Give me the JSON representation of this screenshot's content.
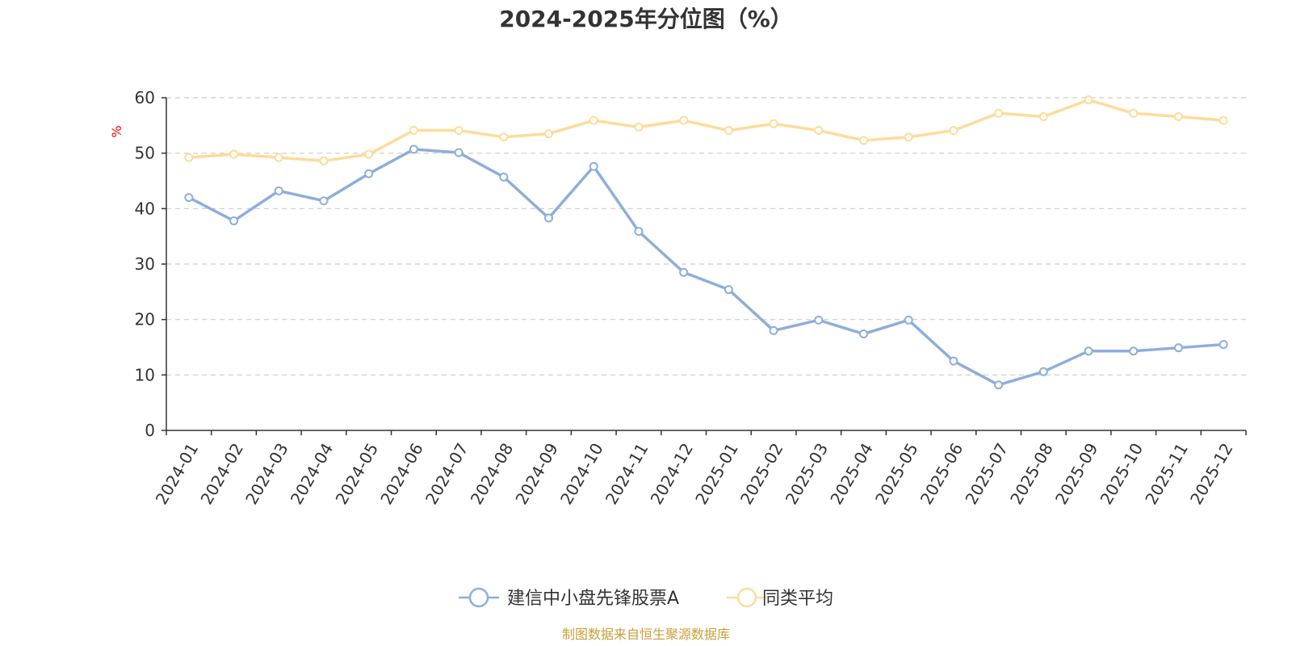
{
  "chart_data": {
    "type": "line",
    "title": "2024-2025年分位图（%）",
    "ylabel": "%",
    "ylabel_color": "#ff0000",
    "xlabel": "",
    "ylim": [
      0,
      60
    ],
    "yticks": [
      0,
      10,
      20,
      30,
      40,
      50,
      60
    ],
    "grid": true,
    "legend_position": "bottom-center",
    "categories": [
      "2024-01",
      "2024-02",
      "2024-03",
      "2024-04",
      "2024-05",
      "2024-06",
      "2024-07",
      "2024-08",
      "2024-09",
      "2024-10",
      "2024-11",
      "2024-12",
      "2025-01",
      "2025-02",
      "2025-03",
      "2025-04",
      "2025-05",
      "2025-06",
      "2025-07",
      "2025-08",
      "2025-09",
      "2025-10",
      "2025-11",
      "2025-12"
    ],
    "series": [
      {
        "name": "建信中小盘先锋股票A",
        "color": "#8eaedb",
        "values": [
          42.0,
          37.8,
          43.2,
          41.4,
          46.3,
          50.7,
          50.1,
          45.7,
          38.3,
          47.6,
          35.9,
          28.5,
          25.4,
          18.0,
          19.9,
          17.4,
          19.9,
          12.5,
          8.2,
          10.6,
          14.3,
          14.3,
          14.9,
          15.5
        ]
      },
      {
        "name": "同类平均",
        "color": "#fddc9a",
        "values": [
          49.2,
          49.8,
          49.2,
          48.6,
          49.8,
          54.1,
          54.1,
          52.9,
          53.5,
          55.9,
          54.7,
          55.9,
          54.1,
          55.3,
          54.1,
          52.3,
          52.9,
          54.1,
          57.2,
          56.6,
          59.6,
          57.2,
          56.6,
          55.9
        ]
      }
    ]
  },
  "footer": {
    "source": "制图数据来自恒生聚源数据库",
    "source_color": "#c8a03c"
  }
}
